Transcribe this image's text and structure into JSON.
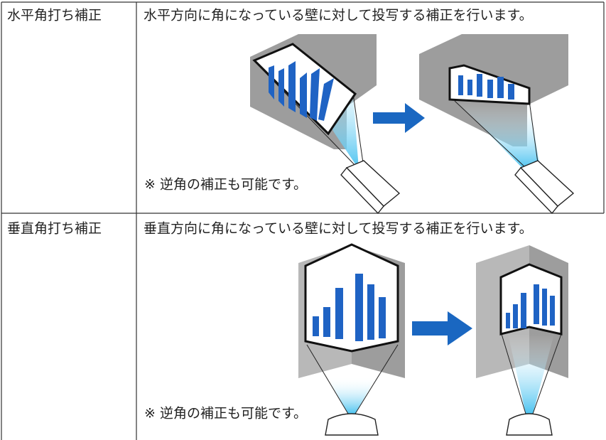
{
  "table": {
    "rows": [
      {
        "label": "水平角打ち補正",
        "description": "水平方向に角になっている壁に対して投写する補正を行います。",
        "note": "※ 逆角の補正も可能です。"
      },
      {
        "label": "垂直角打ち補正",
        "description": "垂直方向に角になっている壁に対して投写する補正を行います。",
        "note": "※ 逆角の補正も可能です。"
      }
    ]
  }
}
